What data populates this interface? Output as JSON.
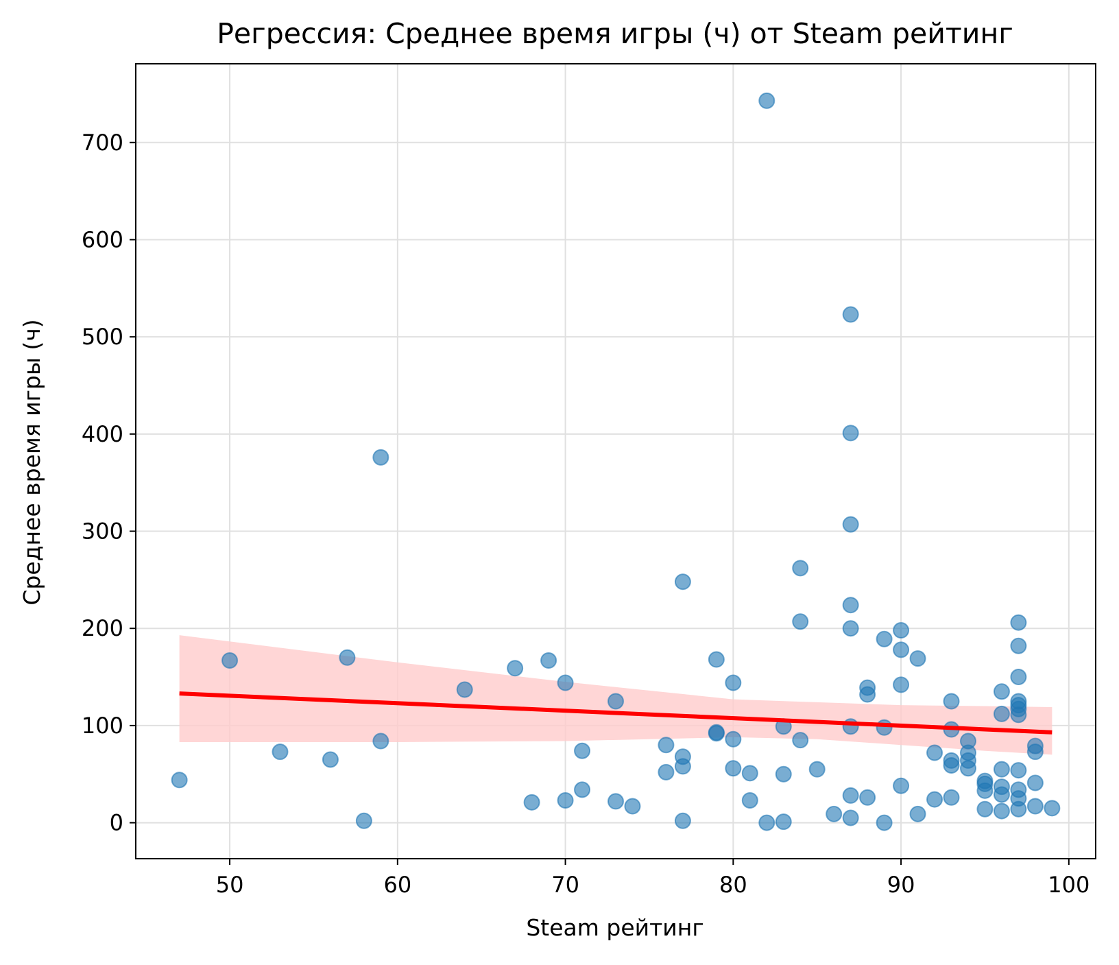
{
  "chart_data": {
    "type": "scatter",
    "title": "Регрессия: Среднее время игры (ч) от Steam рейтинг",
    "xlabel": "Steam рейтинг",
    "ylabel": "Среднее время игры (ч)",
    "xlim": [
      44.4,
      101.6
    ],
    "ylim": [
      -37,
      781
    ],
    "xticks": [
      50,
      60,
      70,
      80,
      90,
      100
    ],
    "yticks": [
      0,
      100,
      200,
      300,
      400,
      500,
      600,
      700
    ],
    "grid": true,
    "colors": {
      "points": "#1f77b4",
      "line": "#ff0000",
      "band": "#ffcccc"
    },
    "points": [
      {
        "x": 47,
        "y": 44
      },
      {
        "x": 50,
        "y": 167
      },
      {
        "x": 53,
        "y": 73
      },
      {
        "x": 56,
        "y": 65
      },
      {
        "x": 57,
        "y": 170
      },
      {
        "x": 58,
        "y": 2
      },
      {
        "x": 59,
        "y": 376
      },
      {
        "x": 59,
        "y": 84
      },
      {
        "x": 64,
        "y": 137
      },
      {
        "x": 67,
        "y": 159
      },
      {
        "x": 68,
        "y": 21
      },
      {
        "x": 69,
        "y": 167
      },
      {
        "x": 70,
        "y": 144
      },
      {
        "x": 70,
        "y": 23
      },
      {
        "x": 71,
        "y": 74
      },
      {
        "x": 71,
        "y": 34
      },
      {
        "x": 73,
        "y": 125
      },
      {
        "x": 73,
        "y": 22
      },
      {
        "x": 74,
        "y": 17
      },
      {
        "x": 76,
        "y": 80
      },
      {
        "x": 76,
        "y": 52
      },
      {
        "x": 77,
        "y": 248
      },
      {
        "x": 77,
        "y": 68
      },
      {
        "x": 77,
        "y": 58
      },
      {
        "x": 77,
        "y": 2
      },
      {
        "x": 79,
        "y": 168
      },
      {
        "x": 79,
        "y": 93
      },
      {
        "x": 79,
        "y": 92
      },
      {
        "x": 80,
        "y": 144
      },
      {
        "x": 80,
        "y": 86
      },
      {
        "x": 80,
        "y": 56
      },
      {
        "x": 81,
        "y": 51
      },
      {
        "x": 81,
        "y": 23
      },
      {
        "x": 82,
        "y": 743
      },
      {
        "x": 82,
        "y": 0
      },
      {
        "x": 83,
        "y": 99
      },
      {
        "x": 83,
        "y": 50
      },
      {
        "x": 83,
        "y": 1
      },
      {
        "x": 84,
        "y": 262
      },
      {
        "x": 84,
        "y": 207
      },
      {
        "x": 84,
        "y": 85
      },
      {
        "x": 85,
        "y": 55
      },
      {
        "x": 86,
        "y": 9
      },
      {
        "x": 87,
        "y": 523
      },
      {
        "x": 87,
        "y": 401
      },
      {
        "x": 87,
        "y": 307
      },
      {
        "x": 87,
        "y": 224
      },
      {
        "x": 87,
        "y": 200
      },
      {
        "x": 87,
        "y": 99
      },
      {
        "x": 87,
        "y": 28
      },
      {
        "x": 87,
        "y": 5
      },
      {
        "x": 88,
        "y": 139
      },
      {
        "x": 88,
        "y": 132
      },
      {
        "x": 88,
        "y": 26
      },
      {
        "x": 89,
        "y": 189
      },
      {
        "x": 89,
        "y": 98
      },
      {
        "x": 89,
        "y": 0
      },
      {
        "x": 90,
        "y": 198
      },
      {
        "x": 90,
        "y": 178
      },
      {
        "x": 90,
        "y": 142
      },
      {
        "x": 90,
        "y": 38
      },
      {
        "x": 91,
        "y": 169
      },
      {
        "x": 91,
        "y": 9
      },
      {
        "x": 92,
        "y": 72
      },
      {
        "x": 92,
        "y": 24
      },
      {
        "x": 93,
        "y": 125
      },
      {
        "x": 93,
        "y": 96
      },
      {
        "x": 93,
        "y": 64
      },
      {
        "x": 93,
        "y": 59
      },
      {
        "x": 93,
        "y": 26
      },
      {
        "x": 94,
        "y": 84
      },
      {
        "x": 94,
        "y": 72
      },
      {
        "x": 94,
        "y": 64
      },
      {
        "x": 94,
        "y": 56
      },
      {
        "x": 95,
        "y": 43
      },
      {
        "x": 95,
        "y": 40
      },
      {
        "x": 95,
        "y": 33
      },
      {
        "x": 95,
        "y": 14
      },
      {
        "x": 96,
        "y": 135
      },
      {
        "x": 96,
        "y": 112
      },
      {
        "x": 96,
        "y": 55
      },
      {
        "x": 96,
        "y": 37
      },
      {
        "x": 96,
        "y": 29
      },
      {
        "x": 96,
        "y": 12
      },
      {
        "x": 97,
        "y": 206
      },
      {
        "x": 97,
        "y": 182
      },
      {
        "x": 97,
        "y": 150
      },
      {
        "x": 97,
        "y": 125
      },
      {
        "x": 97,
        "y": 121
      },
      {
        "x": 97,
        "y": 117
      },
      {
        "x": 97,
        "y": 111
      },
      {
        "x": 97,
        "y": 54
      },
      {
        "x": 97,
        "y": 34
      },
      {
        "x": 97,
        "y": 25
      },
      {
        "x": 97,
        "y": 14
      },
      {
        "x": 98,
        "y": 79
      },
      {
        "x": 98,
        "y": 73
      },
      {
        "x": 98,
        "y": 41
      },
      {
        "x": 98,
        "y": 17
      },
      {
        "x": 99,
        "y": 15
      }
    ],
    "regression": {
      "x": [
        47,
        99
      ],
      "y": [
        133,
        93
      ]
    },
    "confidence_band": {
      "x": [
        47,
        60,
        70,
        80,
        85,
        90,
        95,
        99
      ],
      "upper": [
        193,
        165,
        145,
        127,
        124,
        121,
        120,
        119
      ],
      "lower": [
        83,
        83,
        84,
        88,
        86,
        80,
        74,
        70
      ]
    }
  }
}
